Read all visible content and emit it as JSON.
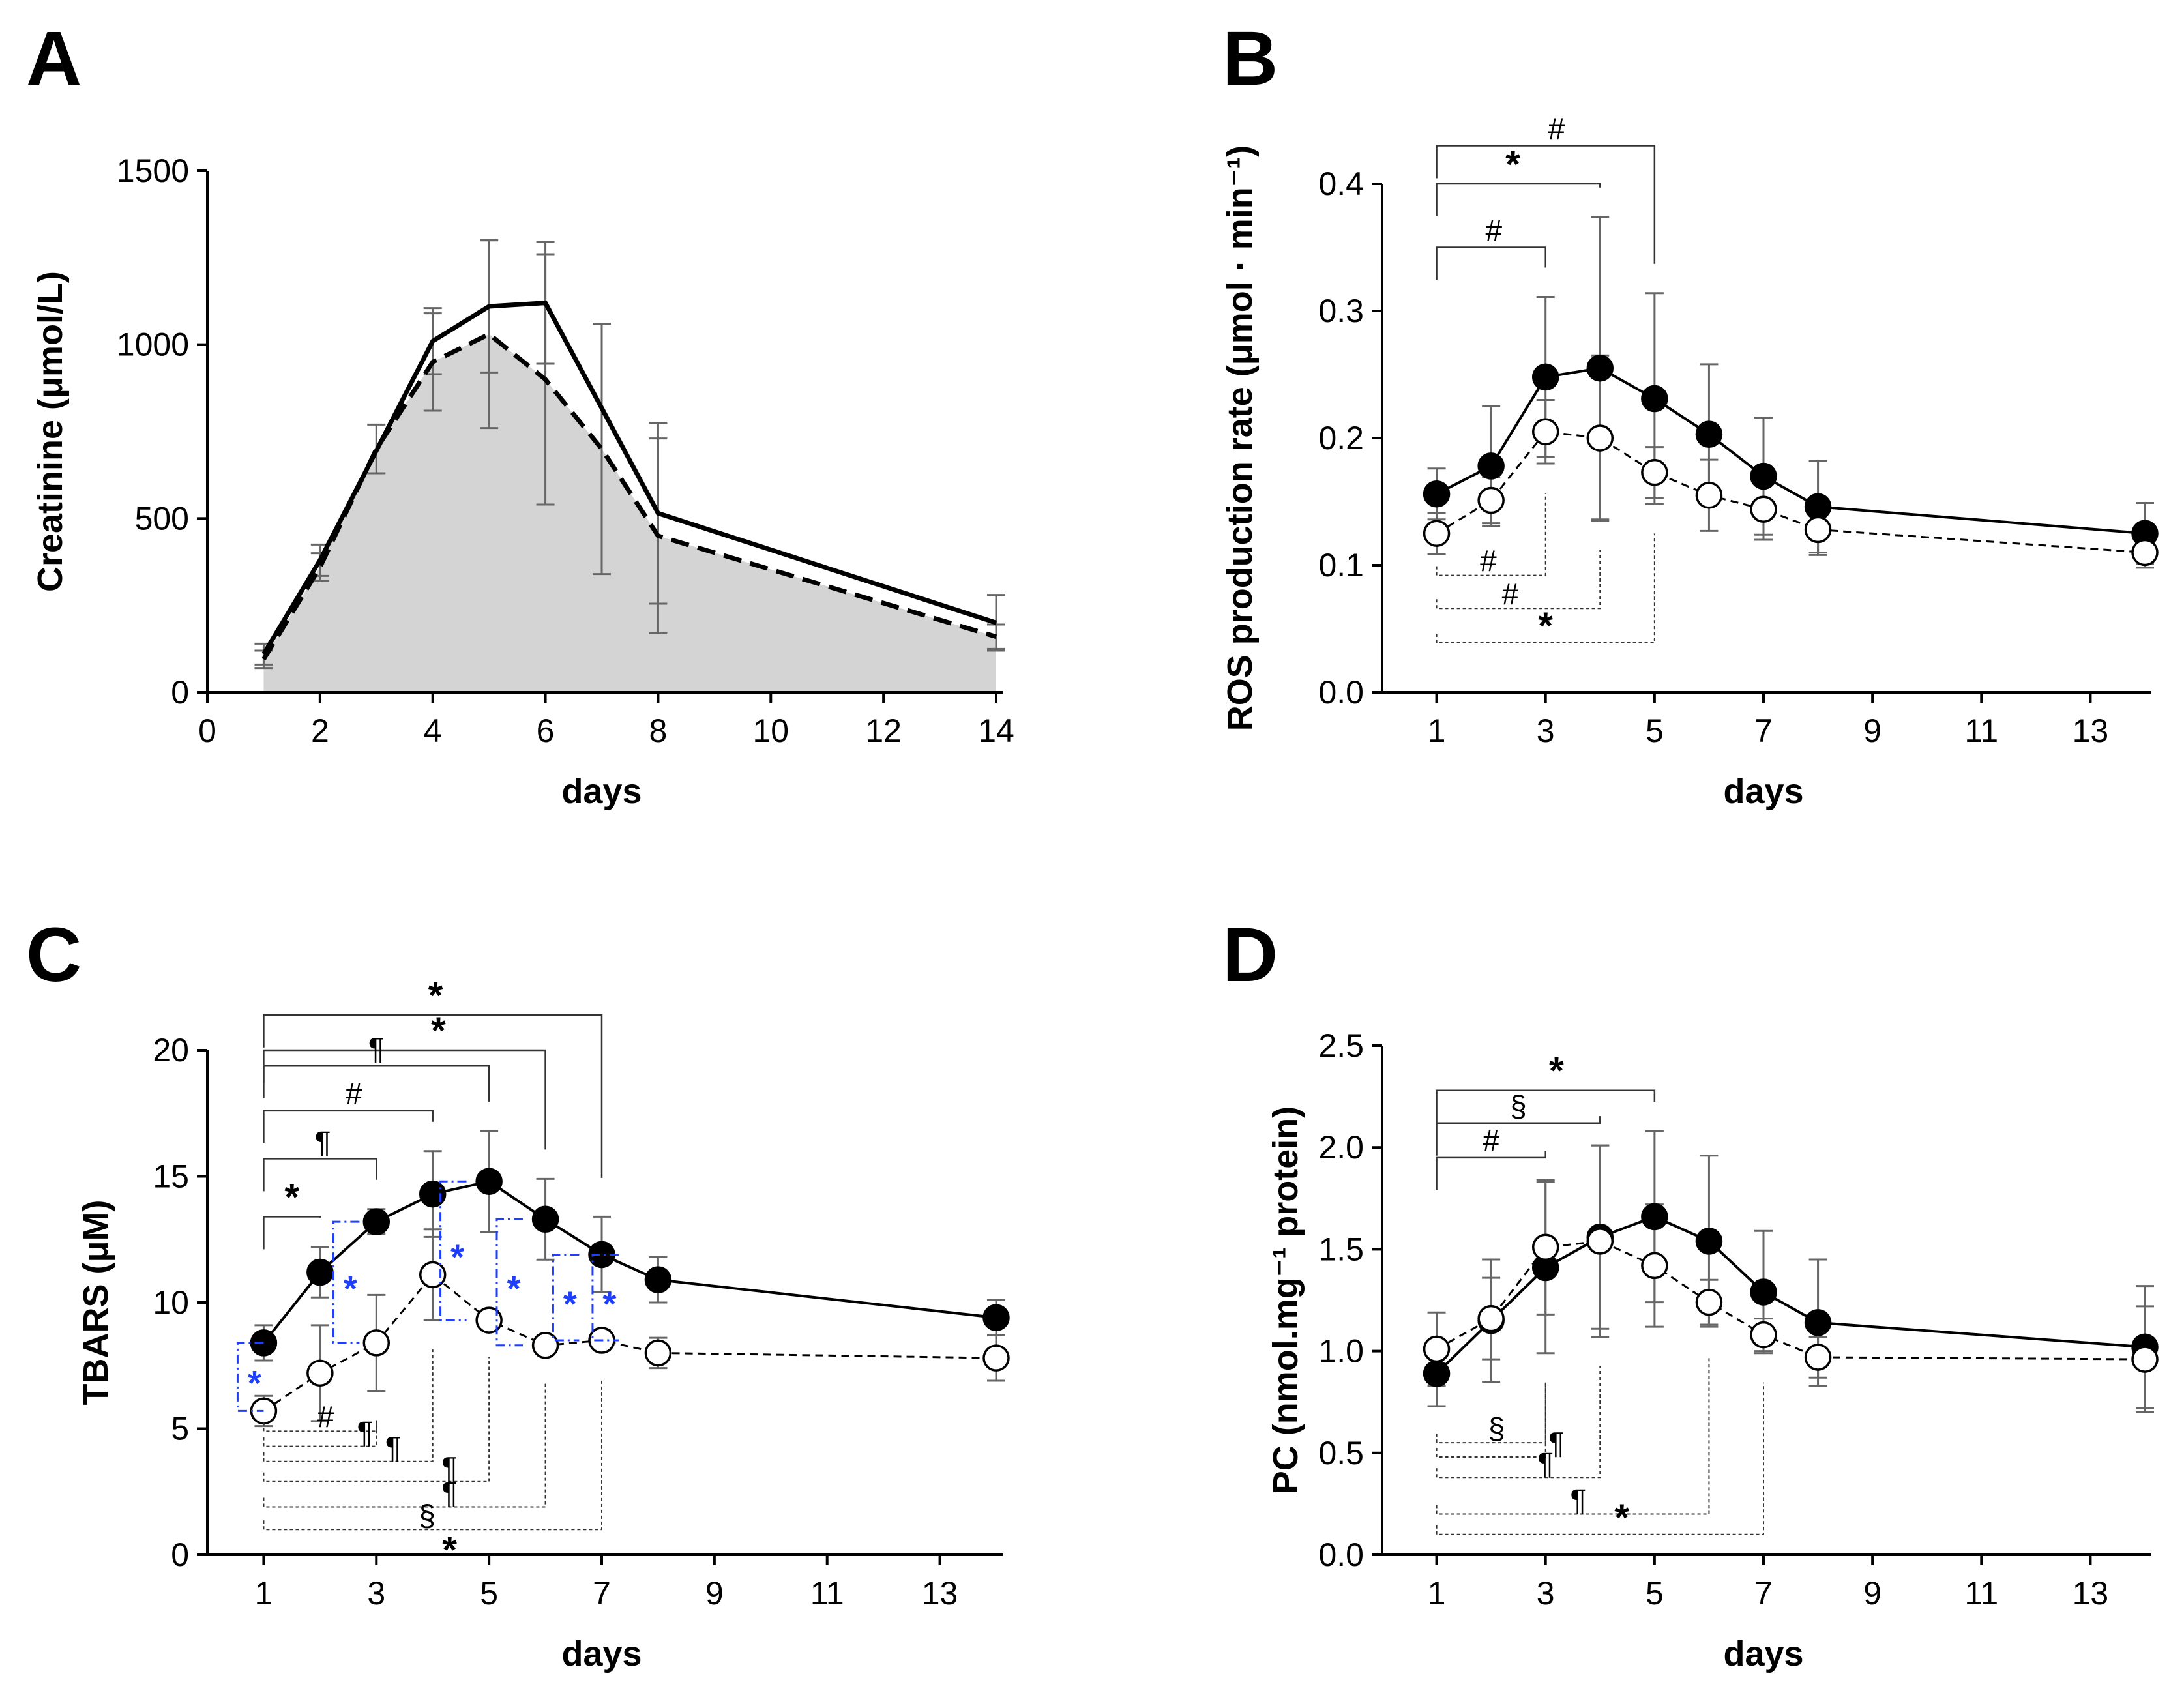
{
  "chart_data": [
    {
      "panel": "A",
      "type": "line",
      "title": "",
      "xlabel": "days",
      "ylabel": "Creatinine (μmol/L)",
      "xlim": [
        0,
        14
      ],
      "ylim": [
        0,
        1500
      ],
      "xticks": [
        0,
        2,
        4,
        6,
        8,
        10,
        12,
        14
      ],
      "yticks": [
        0,
        500,
        1000,
        1500
      ],
      "series": [
        {
          "name": "solid",
          "style": "solid",
          "x": [
            1,
            2,
            4,
            5,
            6,
            8,
            14
          ],
          "values": [
            110,
            380,
            1010,
            1110,
            1120,
            515,
            200
          ],
          "err": [
            30,
            45,
            95,
            190,
            175,
            260,
            80
          ]
        },
        {
          "name": "dashed",
          "style": "dashed-filled",
          "x": [
            1,
            2,
            3,
            4,
            5,
            6,
            7,
            8,
            14
          ],
          "values": [
            95,
            360,
            700,
            950,
            1030,
            900,
            700,
            450,
            160
          ],
          "err": [
            25,
            40,
            70,
            140,
            270,
            360,
            360,
            280,
            35
          ]
        }
      ],
      "annotations": []
    },
    {
      "panel": "B",
      "type": "line",
      "title": "",
      "xlabel": "days",
      "ylabel": "ROS production rate (μmol · min⁻¹)",
      "xlim": [
        0,
        14
      ],
      "ylim": [
        0,
        0.4
      ],
      "xticks": [
        1,
        3,
        5,
        7,
        9,
        11,
        13
      ],
      "yticks": [
        0.0,
        0.1,
        0.2,
        0.3,
        0.4
      ],
      "ytick_decimals": 1,
      "series": [
        {
          "name": "filled",
          "marker": "filled",
          "style": "solid",
          "x": [
            1,
            2,
            3,
            4,
            5,
            6,
            7,
            8,
            14
          ],
          "values": [
            0.156,
            0.178,
            0.248,
            0.255,
            0.231,
            0.203,
            0.17,
            0.146,
            0.125
          ],
          "err": [
            0.02,
            0.047,
            0.063,
            0.119,
            0.083,
            0.055,
            0.046,
            0.036,
            0.024
          ]
        },
        {
          "name": "open",
          "marker": "open",
          "style": "dashed",
          "x": [
            1,
            2,
            3,
            4,
            5,
            6,
            7,
            8,
            14
          ],
          "values": [
            0.125,
            0.151,
            0.205,
            0.2,
            0.173,
            0.155,
            0.144,
            0.128,
            0.11
          ],
          "err": [
            0.016,
            0.018,
            0.025,
            0.065,
            0.02,
            0.028,
            0.024,
            0.02,
            0.012
          ]
        }
      ],
      "annotations": [
        {
          "type": "bracket-top",
          "x1": 1,
          "x2": 5,
          "y": 0.43,
          "text": "#",
          "tx": 3.2,
          "drop": 0.015
        },
        {
          "type": "bracket-top",
          "x1": 1,
          "x2": 4,
          "y": 0.4,
          "text": "*",
          "tx": 2.4,
          "drop": 0.045
        },
        {
          "type": "bracket-top",
          "x1": 1,
          "x2": 3,
          "y": 0.35,
          "text": "#",
          "tx": 2.05,
          "drop": 0.072
        },
        {
          "type": "bracket-bottom",
          "x1": 1,
          "x2": 3,
          "y": 0.092,
          "text": "#",
          "tx": 1.95,
          "rise": 0.095
        },
        {
          "type": "bracket-bottom",
          "x1": 1,
          "x2": 4,
          "y": 0.066,
          "text": "#",
          "tx": 2.35,
          "rise": 0.125
        },
        {
          "type": "bracket-bottom",
          "x1": 1,
          "x2": 5,
          "y": 0.039,
          "text": "*",
          "tx": 3.0,
          "rise": 0.117
        }
      ]
    },
    {
      "panel": "C",
      "type": "line",
      "title": "",
      "xlabel": "days",
      "ylabel": "TBARS (μM)",
      "xlim": [
        0,
        14
      ],
      "ylim": [
        0,
        20
      ],
      "xticks": [
        1,
        3,
        5,
        7,
        9,
        11,
        13
      ],
      "yticks": [
        0,
        5,
        10,
        15,
        20
      ],
      "series": [
        {
          "name": "filled",
          "marker": "filled",
          "style": "solid",
          "x": [
            1,
            2,
            3,
            4,
            5,
            6,
            7,
            8,
            14
          ],
          "values": [
            8.4,
            11.2,
            13.2,
            14.3,
            14.8,
            13.3,
            11.9,
            10.9,
            9.4
          ],
          "err": [
            0.7,
            1.0,
            0.5,
            1.7,
            2.0,
            1.6,
            1.5,
            0.9,
            0.7
          ]
        },
        {
          "name": "open",
          "marker": "open",
          "style": "dashed",
          "x": [
            1,
            2,
            3,
            4,
            5,
            6,
            7,
            8,
            14
          ],
          "values": [
            5.7,
            7.2,
            8.4,
            11.1,
            9.3,
            8.3,
            8.5,
            8.0,
            7.8
          ],
          "err": [
            0.6,
            1.9,
            1.9,
            1.8,
            0.3,
            0.3,
            0.4,
            0.6,
            0.9
          ]
        }
      ],
      "annotations": [
        {
          "type": "bracket-top",
          "x1": 1,
          "x2": 7,
          "y": 21.4,
          "text": "*",
          "tx": 4.05,
          "drop": 0.0
        },
        {
          "type": "bracket-top",
          "x1": 1,
          "x2": 6,
          "y": 20.0,
          "text": "*",
          "tx": 4.1,
          "drop": 0.0
        },
        {
          "type": "bracket-top",
          "x1": 1,
          "x2": 5,
          "y": 19.4,
          "text": "¶",
          "tx": 3.0,
          "drop": 0.0
        },
        {
          "type": "bracket-top",
          "x1": 1,
          "x2": 4,
          "y": 17.6,
          "text": "#",
          "tx": 2.6,
          "drop": 0.0
        },
        {
          "type": "bracket-top",
          "x1": 1,
          "x2": 3,
          "y": 15.7,
          "text": "¶",
          "tx": 2.05,
          "drop": 0.0
        },
        {
          "type": "bracket-top",
          "x1": 1,
          "x2": 2,
          "y": 13.4,
          "text": "*",
          "tx": 1.5,
          "drop": 0.0
        },
        {
          "type": "bracket-bottom",
          "x1": 1,
          "x2": 3,
          "y": 4.9,
          "text": "#",
          "tx": 2.1,
          "rise": 0.0
        },
        {
          "type": "bracket-bottom",
          "x1": 1,
          "x2": 3,
          "y": 4.3,
          "text": "¶",
          "tx": 2.8,
          "rise": 0.0
        },
        {
          "type": "bracket-bottom",
          "x1": 1,
          "x2": 4,
          "y": 3.7,
          "text": "¶",
          "tx": 3.3,
          "rise": 0.0
        },
        {
          "type": "bracket-bottom",
          "x1": 1,
          "x2": 5,
          "y": 2.9,
          "text": "¶",
          "tx": 4.3,
          "rise": 0.0
        },
        {
          "type": "bracket-bottom",
          "x1": 1,
          "x2": 6,
          "y": 1.9,
          "text": "¶",
          "tx": 4.3,
          "rise": 0.0
        },
        {
          "type": "bracket-bottom",
          "x1": 1,
          "x2": 7,
          "y": 1.0,
          "text": "§",
          "tx": 3.9,
          "rise": 0.0
        },
        {
          "type": "text",
          "x": 4.3,
          "y": 0.2,
          "text": "*"
        }
      ],
      "blue_pairs": [
        {
          "x": 1,
          "text": "*"
        },
        {
          "x": 2.7,
          "text": "*"
        },
        {
          "x": 4.6,
          "text": "*"
        },
        {
          "x": 5.6,
          "text": "*"
        },
        {
          "x": 6.6,
          "text": "*"
        },
        {
          "x": 7.3,
          "text": "*"
        }
      ]
    },
    {
      "panel": "D",
      "type": "line",
      "title": "",
      "xlabel": "days",
      "ylabel": "PC (nmol.mg⁻¹ protein)",
      "xlim": [
        0,
        14
      ],
      "ylim": [
        0,
        2.5
      ],
      "xticks": [
        1,
        3,
        5,
        7,
        9,
        11,
        13
      ],
      "yticks": [
        0.0,
        0.5,
        1.0,
        1.5,
        2.0,
        2.5
      ],
      "ytick_decimals": 1,
      "series": [
        {
          "name": "filled",
          "marker": "filled",
          "style": "solid",
          "x": [
            1,
            2,
            3,
            4,
            5,
            6,
            7,
            8,
            14
          ],
          "values": [
            0.89,
            1.15,
            1.41,
            1.56,
            1.66,
            1.54,
            1.29,
            1.14,
            1.02
          ],
          "err": [
            0.16,
            0.3,
            0.42,
            0.45,
            0.42,
            0.42,
            0.3,
            0.31,
            0.3
          ]
        },
        {
          "name": "open",
          "marker": "open",
          "style": "dashed",
          "x": [
            1,
            2,
            3,
            4,
            5,
            6,
            7,
            8,
            14
          ],
          "values": [
            1.01,
            1.16,
            1.51,
            1.54,
            1.42,
            1.24,
            1.08,
            0.97,
            0.96
          ],
          "err": [
            0.18,
            0.2,
            0.33,
            0.47,
            0.3,
            0.11,
            0.08,
            0.1,
            0.26
          ]
        }
      ],
      "annotations": [
        {
          "type": "bracket-top",
          "x1": 1,
          "x2": 5,
          "y": 2.28,
          "text": "*",
          "tx": 3.2,
          "drop": 0.0
        },
        {
          "type": "bracket-top",
          "x1": 1,
          "x2": 4,
          "y": 2.12,
          "text": "§",
          "tx": 2.5,
          "drop": 0.0
        },
        {
          "type": "bracket-top",
          "x1": 1,
          "x2": 3,
          "y": 1.95,
          "text": "#",
          "tx": 2.0,
          "drop": 0.0
        },
        {
          "type": "bracket-bottom",
          "x1": 1,
          "x2": 3,
          "y": 0.55,
          "text": "§",
          "tx": 2.1,
          "rise": 0.0
        },
        {
          "type": "bracket-bottom",
          "x1": 1,
          "x2": 3,
          "y": 0.48,
          "text": "¶",
          "tx": 3.2,
          "rise": 0.0
        },
        {
          "type": "bracket-bottom",
          "x1": 1,
          "x2": 4,
          "y": 0.38,
          "text": "¶",
          "tx": 3.0,
          "rise": 0.0
        },
        {
          "type": "bracket-bottom",
          "x1": 1,
          "x2": 6,
          "y": 0.2,
          "text": "¶",
          "tx": 3.6,
          "rise": 0.0
        },
        {
          "type": "bracket-bottom",
          "x1": 1,
          "x2": 7,
          "y": 0.1,
          "text": "*",
          "tx": 4.4,
          "rise": 0.0
        }
      ]
    }
  ],
  "colors": {
    "line": "#000000",
    "errorbar": "#666666",
    "fill": "#d4d4d4",
    "annotation_blue": "#1f3fff"
  }
}
